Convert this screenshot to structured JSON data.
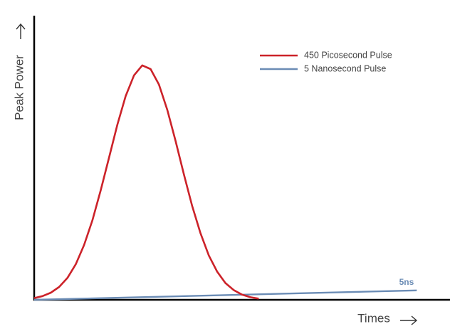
{
  "chart_data": {
    "type": "line",
    "y_label": "Peak Power",
    "x_label": "Times",
    "xlim": [
      0,
      100
    ],
    "ylim": [
      0,
      100
    ],
    "legend": "top-right",
    "series": [
      {
        "name": "450 Picosecond Pulse",
        "color": "#cc2229",
        "x": [
          0,
          2,
          4,
          6,
          8,
          10,
          12,
          14,
          16,
          18,
          20,
          22,
          24,
          26,
          28,
          30,
          32,
          34,
          36,
          38,
          40,
          42,
          44,
          46,
          48,
          50,
          52,
          54
        ],
        "values": [
          0.6,
          1.3,
          2.5,
          4.5,
          7.7,
          12.5,
          19.3,
          28.0,
          38.5,
          50.0,
          61.6,
          71.7,
          79.0,
          82.5,
          81.2,
          75.8,
          66.9,
          55.9,
          44.2,
          33.0,
          23.4,
          15.6,
          9.9,
          5.9,
          3.4,
          1.8,
          0.9,
          0.4
        ]
      },
      {
        "name": "5 Nanosecond Pulse",
        "color": "#6b8cb5",
        "x": [
          0,
          92
        ],
        "values": [
          0,
          3.3
        ]
      }
    ],
    "annotation": "5ns"
  }
}
